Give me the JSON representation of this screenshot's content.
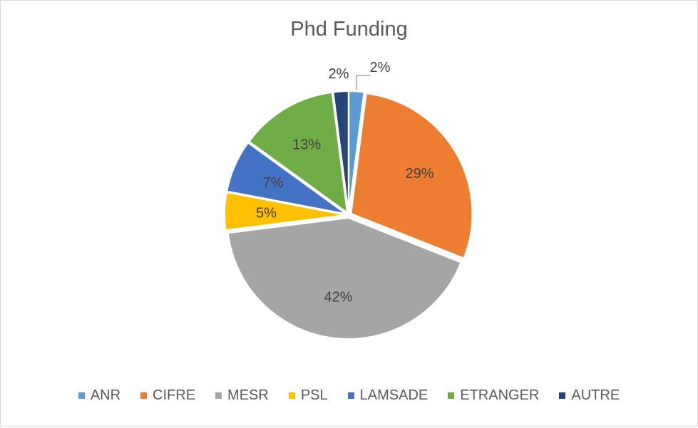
{
  "chart_data": {
    "type": "pie",
    "title": "Phd Funding",
    "categories": [
      "ANR",
      "CIFRE",
      "MESR",
      "PSL",
      "LAMSADE",
      "ETRANGER",
      "AUTRE"
    ],
    "values": [
      2,
      29,
      42,
      5,
      7,
      13,
      2
    ],
    "data_labels": [
      "2%",
      "29%",
      "42%",
      "5%",
      "7%",
      "13%",
      "2%"
    ],
    "colors": [
      "#5b9bd5",
      "#ed7d31",
      "#a5a5a5",
      "#ffc000",
      "#4472c4",
      "#70ad47",
      "#264478"
    ],
    "legend_position": "bottom",
    "start_angle_deg": 0,
    "direction": "clockwise",
    "label_color": "#404040"
  }
}
